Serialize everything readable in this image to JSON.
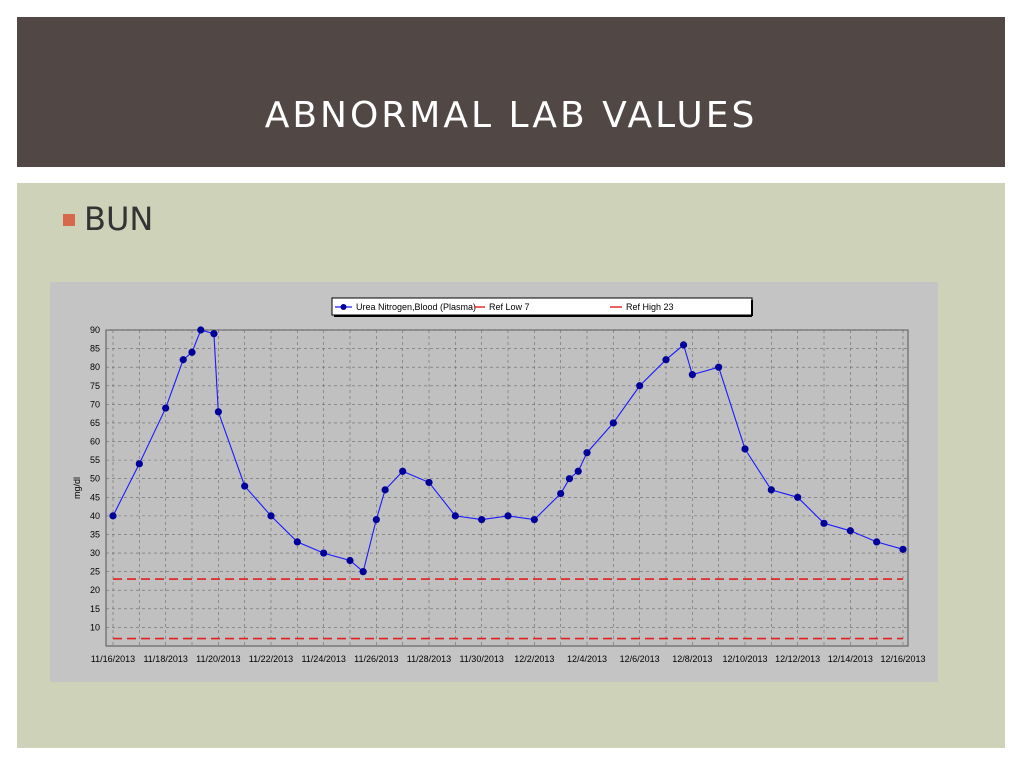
{
  "slide": {
    "title": "ABNORMAL LAB VALUES",
    "bullet": "BUN"
  },
  "colors": {
    "header_bg": "#514846",
    "content_bg": "#cdd2b8",
    "bullet_accent": "#d6694b",
    "series": "#1a1aff",
    "marker": "#000099",
    "ref_line": "#e02020"
  },
  "chart_data": {
    "type": "line",
    "ylabel": "mg/dl",
    "xlabel": "",
    "ylim": [
      5,
      90
    ],
    "yticks": [
      10,
      15,
      20,
      25,
      30,
      35,
      40,
      45,
      50,
      55,
      60,
      65,
      70,
      75,
      80,
      85,
      90
    ],
    "grid": true,
    "legend_position": "top",
    "xticks": [
      "11/16/2013",
      "11/18/2013",
      "11/20/2013",
      "11/22/2013",
      "11/24/2013",
      "11/26/2013",
      "11/28/2013",
      "11/30/2013",
      "12/2/2013",
      "12/4/2013",
      "12/6/2013",
      "12/8/2013",
      "12/10/2013",
      "12/12/2013",
      "12/14/2013",
      "12/16/2013"
    ],
    "series": [
      {
        "name": "Urea Nitrogen,Blood (Plasma)",
        "points": [
          [
            "2013-11-16",
            40
          ],
          [
            "2013-11-17",
            54
          ],
          [
            "2013-11-18",
            69
          ],
          [
            "2013-11-18T16:00",
            82
          ],
          [
            "2013-11-19",
            84
          ],
          [
            "2013-11-19T08:00",
            90
          ],
          [
            "2013-11-19T20:00",
            89
          ],
          [
            "2013-11-20",
            68
          ],
          [
            "2013-11-21",
            48
          ],
          [
            "2013-11-22",
            40
          ],
          [
            "2013-11-23",
            33
          ],
          [
            "2013-11-24",
            30
          ],
          [
            "2013-11-25",
            28
          ],
          [
            "2013-11-25T12:00",
            25
          ],
          [
            "2013-11-26",
            39
          ],
          [
            "2013-11-26T08:00",
            47
          ],
          [
            "2013-11-27",
            52
          ],
          [
            "2013-11-28",
            49
          ],
          [
            "2013-11-29",
            40
          ],
          [
            "2013-11-30",
            39
          ],
          [
            "2013-12-01",
            40
          ],
          [
            "2013-12-02",
            39
          ],
          [
            "2013-12-03",
            46
          ],
          [
            "2013-12-03T08:00",
            50
          ],
          [
            "2013-12-03T16:00",
            52
          ],
          [
            "2013-12-04",
            57
          ],
          [
            "2013-12-05",
            65
          ],
          [
            "2013-12-06",
            75
          ],
          [
            "2013-12-07",
            82
          ],
          [
            "2013-12-07T16:00",
            86
          ],
          [
            "2013-12-08",
            78
          ],
          [
            "2013-12-09",
            80
          ],
          [
            "2013-12-10",
            58
          ],
          [
            "2013-12-11",
            47
          ],
          [
            "2013-12-12",
            45
          ],
          [
            "2013-12-13",
            38
          ],
          [
            "2013-12-14",
            36
          ],
          [
            "2013-12-15",
            33
          ],
          [
            "2013-12-16",
            31
          ]
        ]
      },
      {
        "name": "Ref Low 7",
        "value": 7
      },
      {
        "name": "Ref High 23",
        "value": 23
      }
    ]
  }
}
